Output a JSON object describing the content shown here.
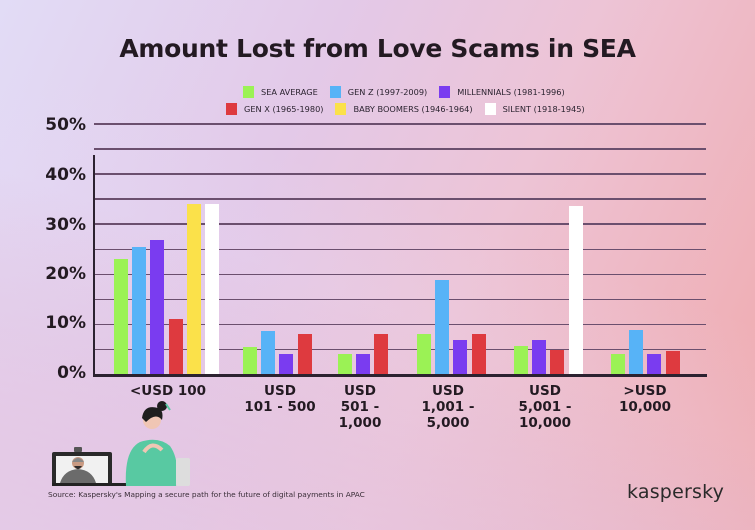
{
  "title": "Amount Lost from Love Scams in SEA",
  "legend": [
    {
      "label": "SEA AVERAGE",
      "color": "#9bf255"
    },
    {
      "label": "GEN Z (1997-2009)",
      "color": "#57b3f7"
    },
    {
      "label": "MILLENNIALS (1981-1996)",
      "color": "#7a3cf0"
    },
    {
      "label": "GEN X (1965-1980)",
      "color": "#de3a3f"
    },
    {
      "label": "BABY BOOMERS (1946-1964)",
      "color": "#fbe14a"
    },
    {
      "label": "SILENT (1918-1945)",
      "color": "#ffffff"
    }
  ],
  "y_ticks": [
    "50%",
    "40%",
    "30%",
    "20%",
    "10%",
    "0%"
  ],
  "x_labels": [
    "<USD 100",
    "USD\n101 - 500",
    "USD\n501 -\n1,000",
    "USD\n1,001 -\n5,000",
    "USD\n5,001 -\n10,000",
    ">USD\n10,000"
  ],
  "source": "Source: Kaspersky's Mapping a secure path for the future of digital payments in APAC",
  "logo": "kaspersky",
  "chart_data": {
    "type": "bar",
    "title": "Amount Lost from Love Scams in SEA",
    "xlabel": "",
    "ylabel": "",
    "ylim": [
      0,
      50
    ],
    "y_tick_labels": [
      "0%",
      "10%",
      "20%",
      "30%",
      "40%",
      "50%"
    ],
    "grid": true,
    "legend_position": "top",
    "categories": [
      "<USD 100",
      "USD 101 - 500",
      "USD 501 - 1,000",
      "USD 1,001 - 5,000",
      "USD 5,001 - 10,000",
      ">USD 10,000"
    ],
    "series": [
      {
        "name": "SEA AVERAGE",
        "color": "#9bf255",
        "values": [
          23,
          5.4,
          4,
          8,
          5.6,
          4
        ]
      },
      {
        "name": "GEN Z (1997-2009)",
        "color": "#57b3f7",
        "values": [
          25.2,
          8.6,
          0,
          18.8,
          0,
          8.8
        ]
      },
      {
        "name": "MILLENNIALS (1981-1996)",
        "color": "#7a3cf0",
        "values": [
          26.6,
          4,
          4,
          6.8,
          6.8,
          4
        ]
      },
      {
        "name": "GEN X (1965-1980)",
        "color": "#de3a3f",
        "values": [
          11,
          8,
          8,
          8,
          4.8,
          4.6
        ]
      },
      {
        "name": "BABY BOOMERS (1946-1964)",
        "color": "#fbe14a",
        "values": [
          33.8,
          0,
          0,
          0,
          0,
          0
        ]
      },
      {
        "name": "SILENT (1918-1945)",
        "color": "#ffffff",
        "values": [
          33.8,
          0,
          0,
          0,
          33.4,
          0
        ]
      }
    ]
  }
}
